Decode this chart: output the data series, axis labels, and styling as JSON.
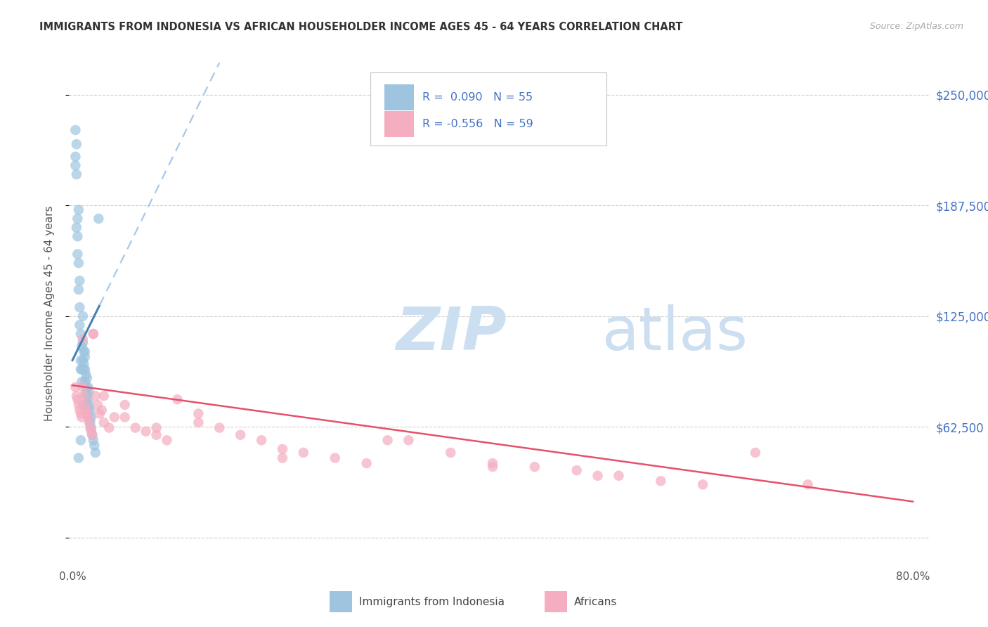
{
  "title": "IMMIGRANTS FROM INDONESIA VS AFRICAN HOUSEHOLDER INCOME AGES 45 - 64 YEARS CORRELATION CHART",
  "source": "Source: ZipAtlas.com",
  "ylabel": "Householder Income Ages 45 - 64 years",
  "xlim": [
    -0.003,
    0.815
  ],
  "ylim": [
    -15000,
    268000
  ],
  "ytick_vals": [
    0,
    62500,
    125000,
    187500,
    250000
  ],
  "ytick_labels_right": [
    "",
    "$62,500",
    "$125,000",
    "$187,500",
    "$250,000"
  ],
  "xtick_vals": [
    0.0,
    0.1,
    0.2,
    0.3,
    0.4,
    0.5,
    0.6,
    0.7,
    0.8
  ],
  "xtick_labels": [
    "0.0%",
    "",
    "",
    "",
    "",
    "",
    "",
    "",
    "80.0%"
  ],
  "blue_R_str": "0.090",
  "blue_N_str": "55",
  "pink_R_str": "-0.556",
  "pink_N_str": "59",
  "blue_scatter_color": "#9ec4e0",
  "pink_scatter_color": "#f5adc0",
  "blue_line_color": "#4682b4",
  "pink_line_color": "#e8506a",
  "blue_dash_color": "#a8c8e8",
  "label_blue_color": "#4472C4",
  "label_pink_color": "#e8506a",
  "rn_text_color": "#4472C4",
  "watermark_zip_color": "#c8dff0",
  "watermark_atlas_color": "#c8dff0",
  "legend_label_blue": "Immigrants from Indonesia",
  "legend_label_pink": "Africans",
  "blue_x": [
    0.003,
    0.004,
    0.005,
    0.005,
    0.006,
    0.006,
    0.007,
    0.007,
    0.008,
    0.008,
    0.009,
    0.009,
    0.01,
    0.01,
    0.01,
    0.011,
    0.011,
    0.012,
    0.012,
    0.012,
    0.013,
    0.013,
    0.014,
    0.014,
    0.015,
    0.015,
    0.016,
    0.016,
    0.017,
    0.018,
    0.003,
    0.004,
    0.005,
    0.006,
    0.007,
    0.008,
    0.009,
    0.01,
    0.011,
    0.012,
    0.013,
    0.014,
    0.015,
    0.016,
    0.017,
    0.018,
    0.019,
    0.02,
    0.021,
    0.022,
    0.003,
    0.004,
    0.025,
    0.006,
    0.008
  ],
  "blue_y": [
    230000,
    222000,
    180000,
    160000,
    155000,
    140000,
    130000,
    120000,
    115000,
    100000,
    108000,
    95000,
    125000,
    110000,
    100000,
    105000,
    98000,
    102000,
    95000,
    88000,
    92000,
    85000,
    90000,
    80000,
    85000,
    78000,
    82000,
    75000,
    72000,
    68000,
    215000,
    205000,
    170000,
    185000,
    145000,
    95000,
    88000,
    75000,
    95000,
    105000,
    82000,
    75000,
    72000,
    68000,
    65000,
    62000,
    58000,
    55000,
    52000,
    48000,
    210000,
    175000,
    180000,
    45000,
    55000
  ],
  "pink_x": [
    0.003,
    0.004,
    0.005,
    0.006,
    0.007,
    0.008,
    0.009,
    0.01,
    0.011,
    0.012,
    0.013,
    0.014,
    0.015,
    0.016,
    0.017,
    0.018,
    0.019,
    0.02,
    0.022,
    0.024,
    0.026,
    0.028,
    0.03,
    0.035,
    0.04,
    0.05,
    0.06,
    0.07,
    0.08,
    0.09,
    0.1,
    0.12,
    0.14,
    0.16,
    0.18,
    0.2,
    0.22,
    0.25,
    0.28,
    0.32,
    0.36,
    0.4,
    0.44,
    0.48,
    0.52,
    0.56,
    0.6,
    0.65,
    0.7,
    0.01,
    0.02,
    0.03,
    0.05,
    0.08,
    0.12,
    0.2,
    0.3,
    0.4,
    0.5
  ],
  "pink_y": [
    85000,
    80000,
    78000,
    75000,
    72000,
    70000,
    68000,
    85000,
    80000,
    75000,
    72000,
    70000,
    68000,
    65000,
    62000,
    60000,
    58000,
    115000,
    80000,
    75000,
    70000,
    72000,
    65000,
    62000,
    68000,
    75000,
    62000,
    60000,
    58000,
    55000,
    78000,
    70000,
    62000,
    58000,
    55000,
    50000,
    48000,
    45000,
    42000,
    55000,
    48000,
    42000,
    40000,
    38000,
    35000,
    32000,
    30000,
    48000,
    30000,
    112000,
    115000,
    80000,
    68000,
    62000,
    65000,
    45000,
    55000,
    40000,
    35000
  ],
  "blue_line_x0": 0.0,
  "blue_line_x_solid_end": 0.026,
  "blue_line_x_dash_end": 0.8,
  "blue_line_y0": 100000,
  "blue_line_slope": 1200000,
  "pink_line_x0": 0.0,
  "pink_line_x_end": 0.8,
  "pink_line_y0": 86000,
  "pink_line_slope": -82000
}
